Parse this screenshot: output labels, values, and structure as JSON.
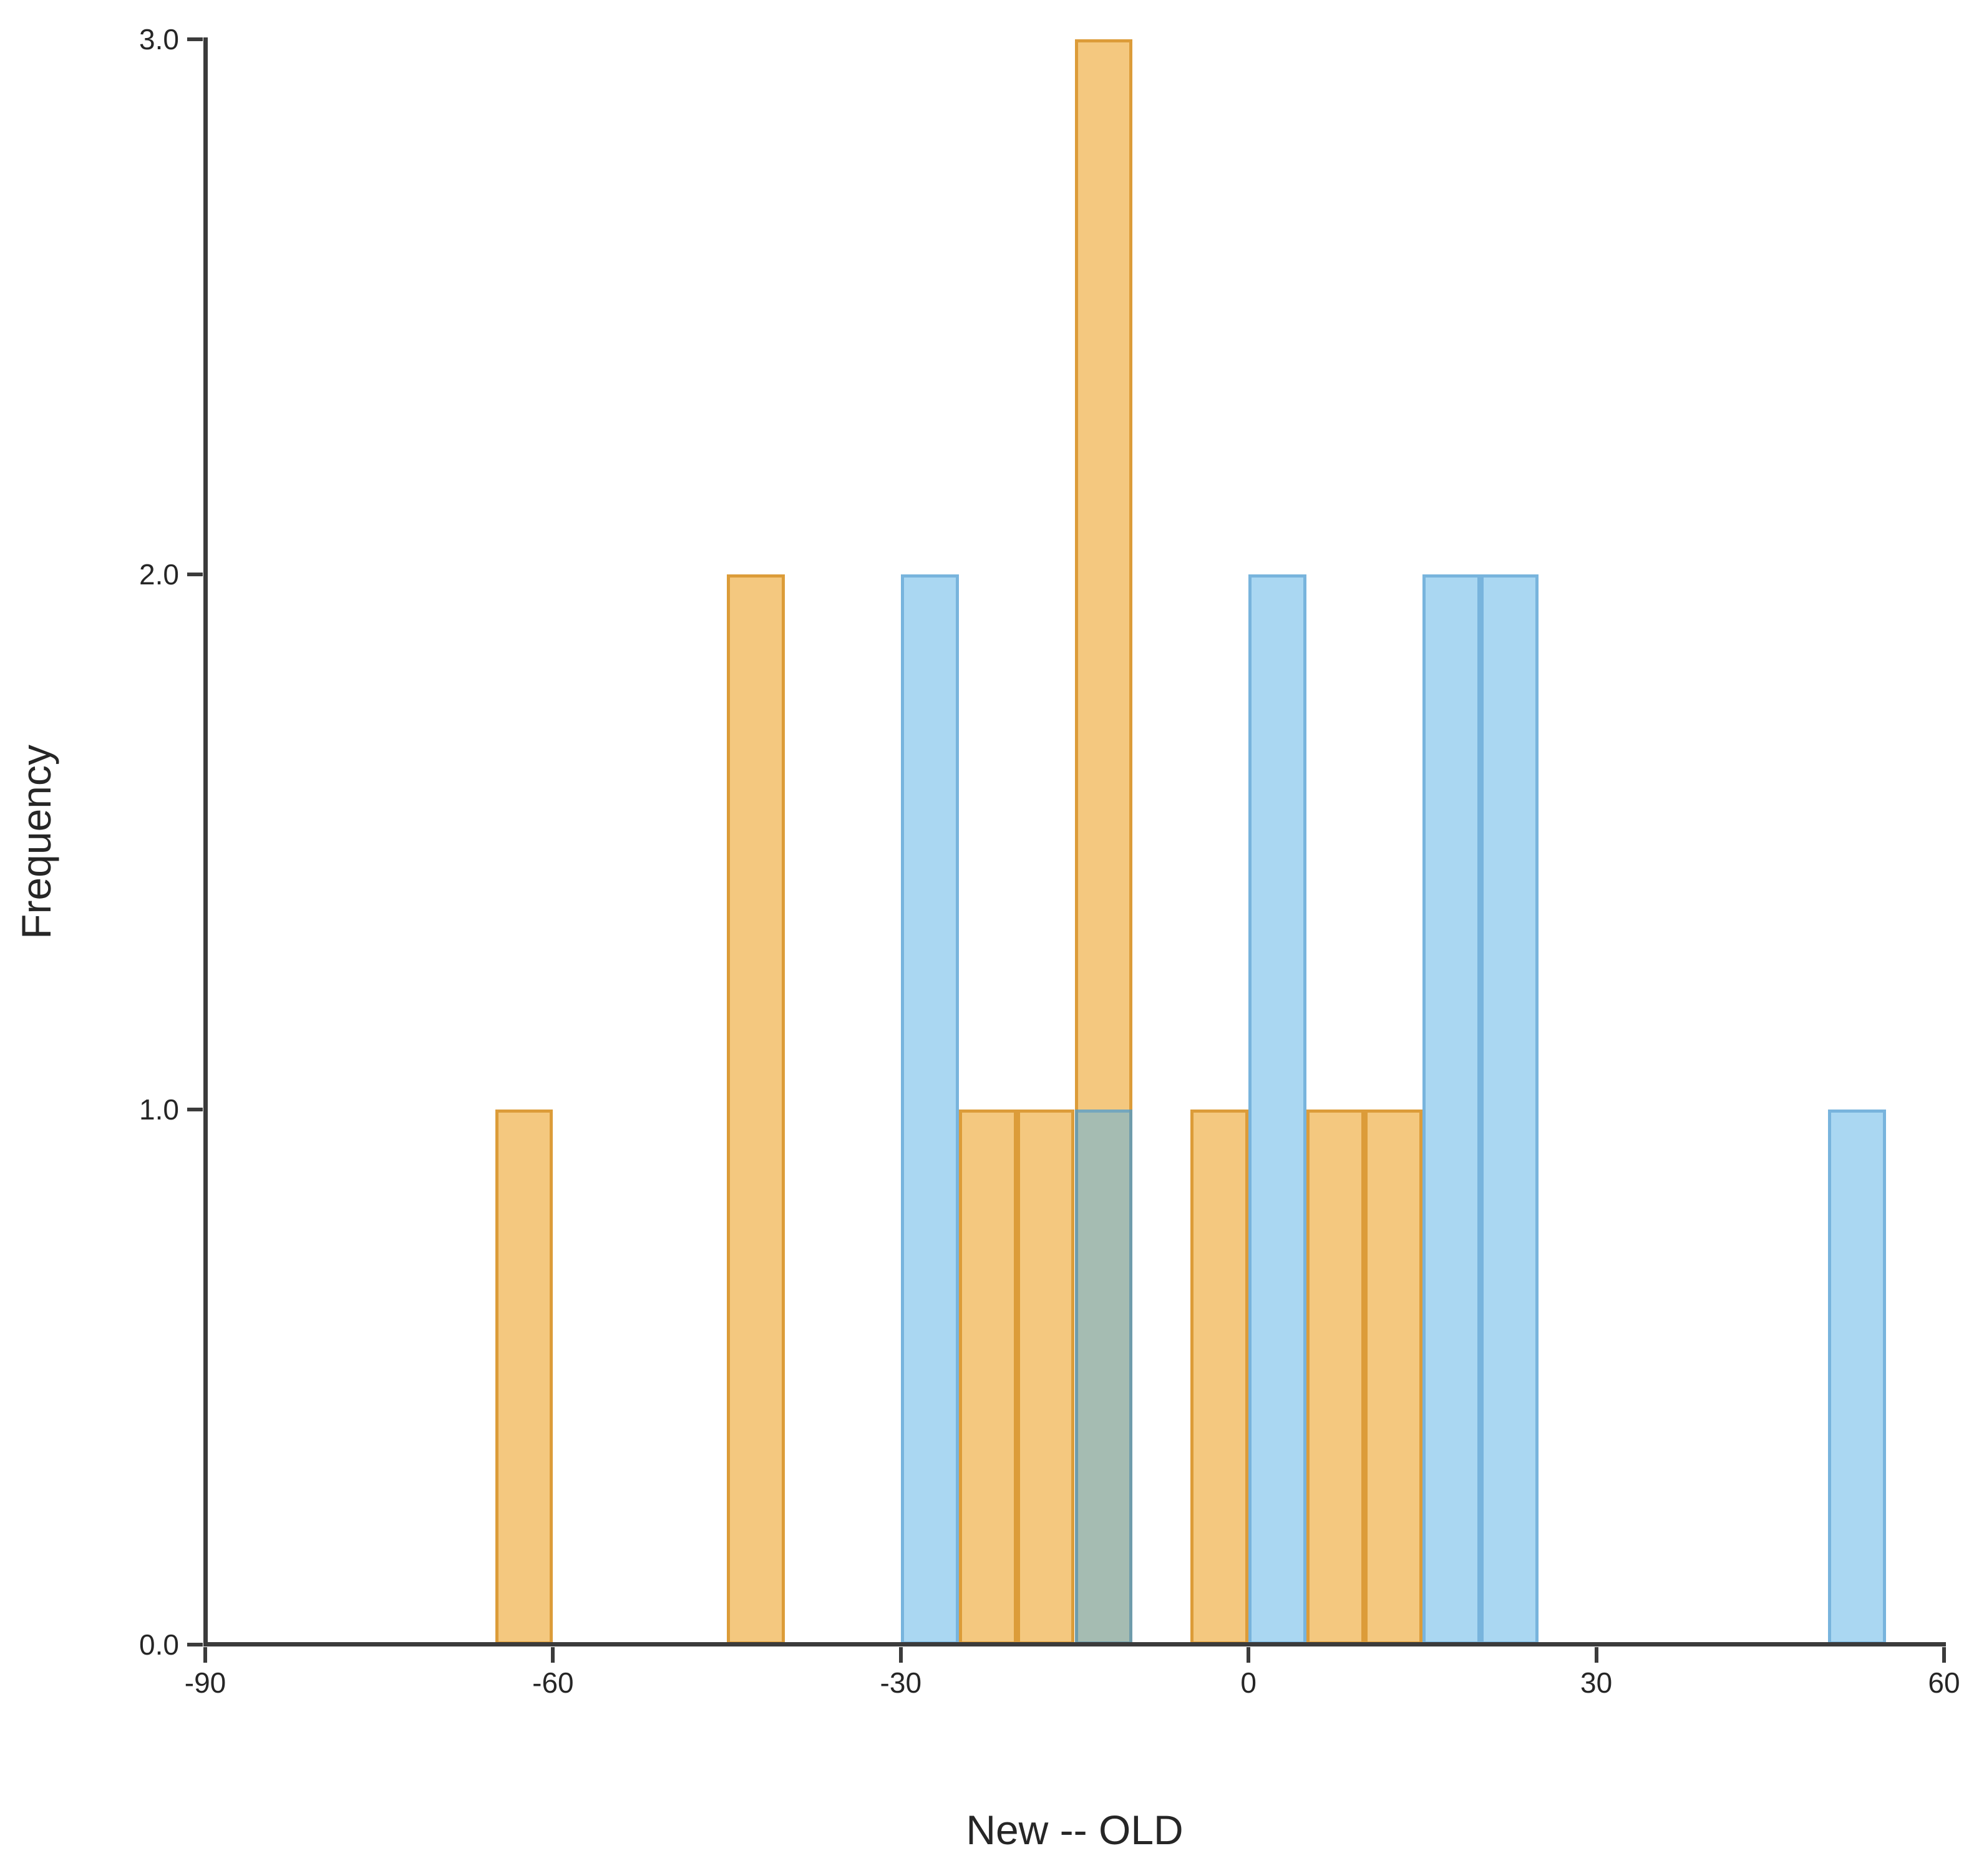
{
  "figure": {
    "background_color": "#ffffff",
    "axis_color": "#3b3b3b",
    "text_color": "#262626"
  },
  "chart_data": {
    "type": "bar",
    "subtype": "overlaid_histogram",
    "title": "",
    "xlabel": "New -- OLD",
    "ylabel": "Frequency",
    "xlim": [
      -90,
      60
    ],
    "ylim": [
      0,
      3
    ],
    "x_ticks": [
      -90,
      -60,
      -30,
      0,
      30,
      60
    ],
    "x_tick_labels": [
      "-90",
      "-60",
      "-30",
      "0",
      "30",
      "60"
    ],
    "y_ticks": [
      0,
      1,
      2,
      3
    ],
    "y_tick_labels": [
      "0.0",
      "1.0",
      "2.0",
      "3.0"
    ],
    "bin_width": 5,
    "grid": false,
    "legend_position": "none",
    "series": [
      {
        "name": "orange-series",
        "fill_color": "rgba(233,145,0,0.5)",
        "edge_color": "rgba(200,120,0,0.55)",
        "bins": [
          {
            "x0": -65,
            "x1": -60,
            "count": 1
          },
          {
            "x0": -45,
            "x1": -40,
            "count": 2
          },
          {
            "x0": -25,
            "x1": -20,
            "count": 1
          },
          {
            "x0": -20,
            "x1": -15,
            "count": 1
          },
          {
            "x0": -15,
            "x1": -10,
            "count": 3
          },
          {
            "x0": -5,
            "x1": 0,
            "count": 1
          },
          {
            "x0": 5,
            "x1": 10,
            "count": 1
          },
          {
            "x0": 10,
            "x1": 15,
            "count": 1
          }
        ]
      },
      {
        "name": "blue-series",
        "fill_color": "rgba(85,175,229,0.5)",
        "edge_color": "rgba(70,145,200,0.5)",
        "bins": [
          {
            "x0": -30,
            "x1": -25,
            "count": 2
          },
          {
            "x0": -15,
            "x1": -10,
            "count": 1
          },
          {
            "x0": 0,
            "x1": 5,
            "count": 2
          },
          {
            "x0": 15,
            "x1": 20,
            "count": 2
          },
          {
            "x0": 20,
            "x1": 25,
            "count": 2
          },
          {
            "x0": 50,
            "x1": 55,
            "count": 1
          }
        ]
      }
    ]
  }
}
